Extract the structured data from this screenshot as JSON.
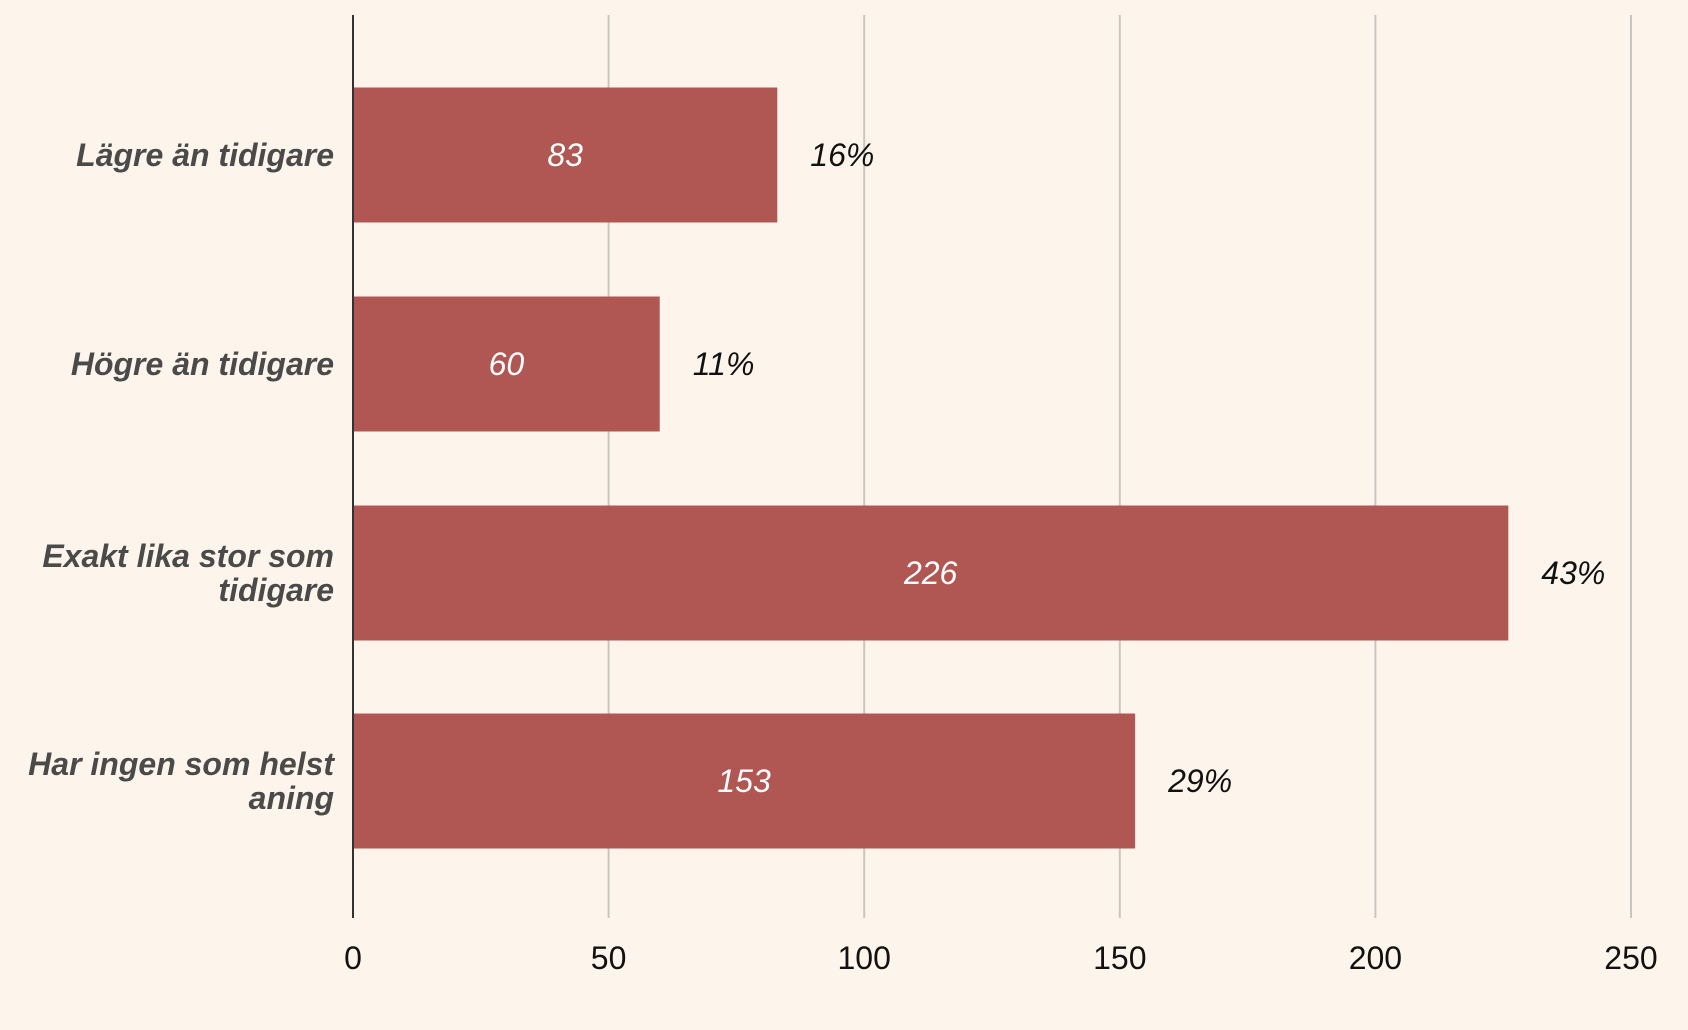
{
  "chart_data": {
    "type": "bar",
    "orientation": "horizontal",
    "categories": [
      [
        "Lägre än tidigare"
      ],
      [
        "Högre än tidigare"
      ],
      [
        "Exakt lika stor som",
        "tidigare"
      ],
      [
        "Har ingen som helst",
        "aning"
      ]
    ],
    "values": [
      83,
      60,
      226,
      153
    ],
    "value_labels": [
      "83",
      "60",
      "226",
      "153"
    ],
    "percent_labels": [
      "16%",
      "11%",
      "43%",
      "29%"
    ],
    "xlim": [
      0,
      250
    ],
    "x_ticks": [
      0,
      50,
      100,
      150,
      200,
      250
    ],
    "x_tick_labels": [
      "0",
      "50",
      "100",
      "150",
      "200",
      "250"
    ],
    "grid": "vertical",
    "legend": "none"
  },
  "colors": {
    "background": "#fdf5eb",
    "bar": "#b05753",
    "gridline": "#c9c6c2",
    "axis": "#333333",
    "category_text": "#4a4a4a",
    "value_text": "#ffffff",
    "percent_text": "#111111",
    "tick_text": "#111111"
  }
}
